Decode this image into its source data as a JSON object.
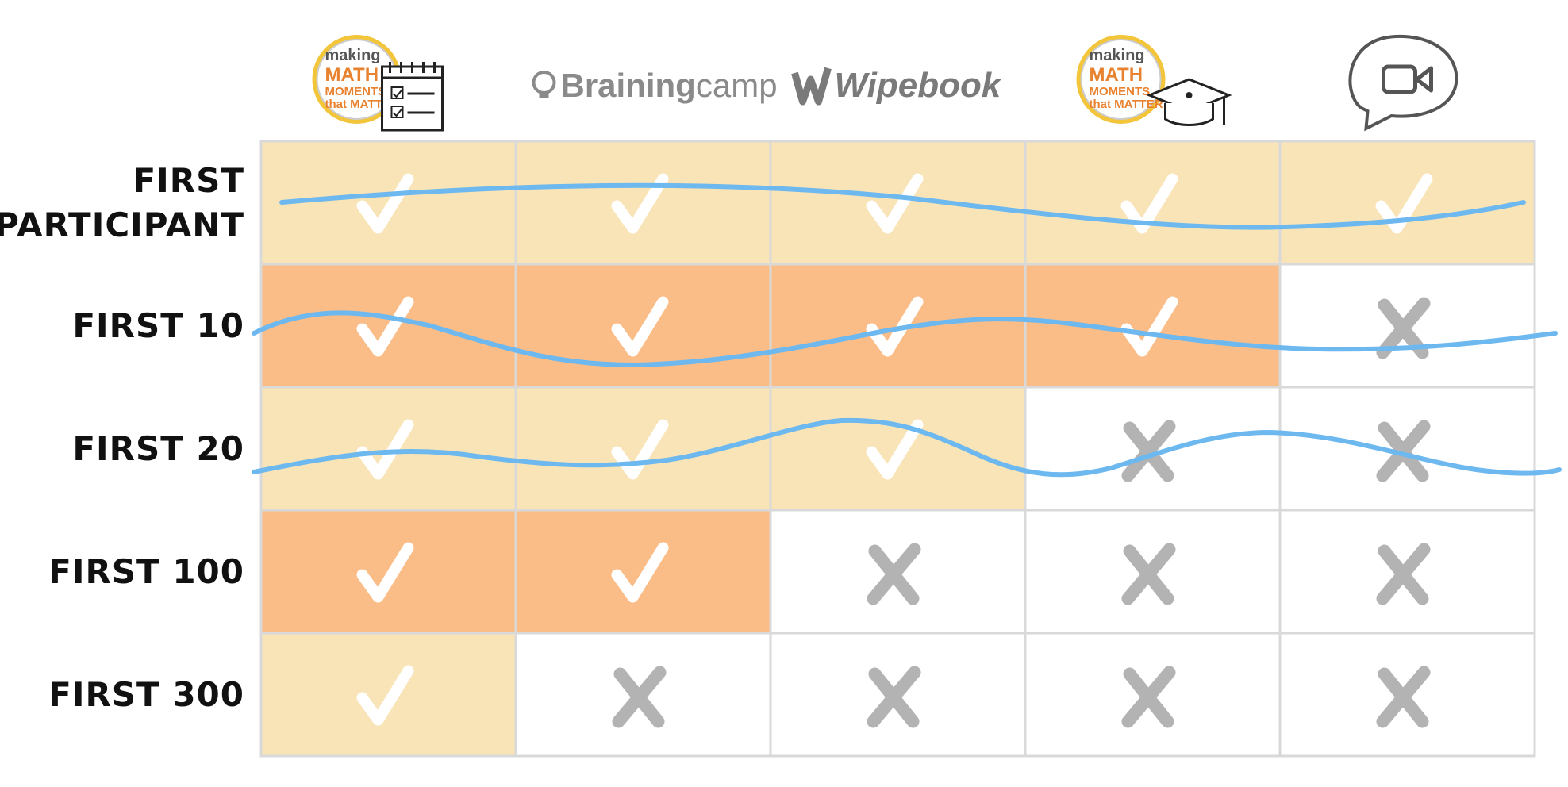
{
  "columns": [
    {
      "key": "mmm-course",
      "type": "logo-badge",
      "badge_lines": [
        "making",
        "MATH",
        "MOMENTS",
        "that MATTER"
      ],
      "overlay": "checklist-icon"
    },
    {
      "key": "brainingcamp",
      "type": "wordmark",
      "label_bold": "Braining",
      "label_light": "camp",
      "icon": "brain-bulb-icon"
    },
    {
      "key": "wipebook",
      "type": "wordmark",
      "label": "Wipebook",
      "icon": "wipebook-w-icon"
    },
    {
      "key": "mmm-academy",
      "type": "logo-badge",
      "badge_lines": [
        "making",
        "MATH",
        "MOMENTS",
        "that MATTER"
      ],
      "overlay": "graduation-cap-icon"
    },
    {
      "key": "video-chat",
      "type": "icon",
      "icon": "video-speech-bubble-icon"
    }
  ],
  "rows": [
    {
      "label_lines": [
        "FIRST",
        "PARTICIPANT"
      ],
      "marks": [
        "check",
        "check",
        "check",
        "check",
        "check"
      ],
      "fill": "#f9e4b7"
    },
    {
      "label_lines": [
        "FIRST 10"
      ],
      "marks": [
        "check",
        "check",
        "check",
        "check",
        "cross"
      ],
      "fill": "#fbbd87"
    },
    {
      "label_lines": [
        "FIRST 20"
      ],
      "marks": [
        "check",
        "check",
        "check",
        "cross",
        "cross"
      ],
      "fill": "#f9e4b7"
    },
    {
      "label_lines": [
        "FIRST 100"
      ],
      "marks": [
        "check",
        "check",
        "cross",
        "cross",
        "cross"
      ],
      "fill": "#fbbd87"
    },
    {
      "label_lines": [
        "FIRST 300"
      ],
      "marks": [
        "check",
        "cross",
        "cross",
        "cross",
        "cross"
      ],
      "fill": "#f9e4b7"
    }
  ],
  "colors": {
    "check": "#ffffff",
    "cross": "#b3b3b3",
    "grid": "#d9d9d9",
    "wave": "#6cb8ef",
    "brand_orange": "#e8822f",
    "badge_yellow": "#f3c53a",
    "logo_gray": "#8a8a8a"
  }
}
